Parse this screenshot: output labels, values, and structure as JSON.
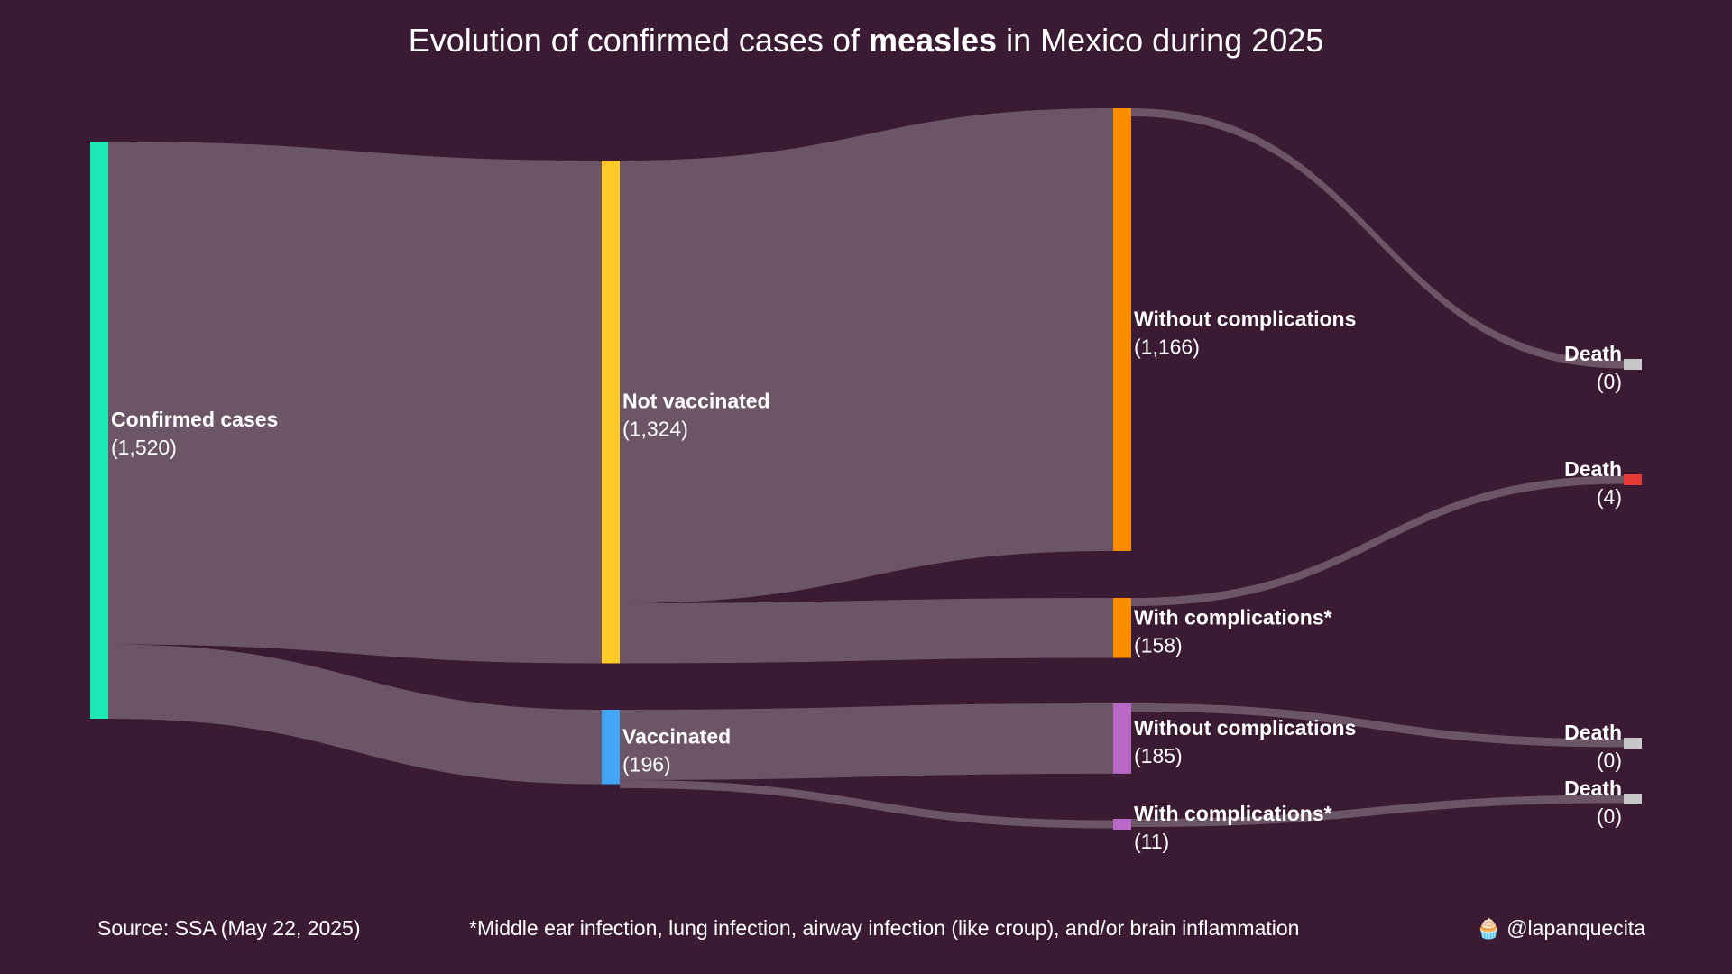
{
  "title": {
    "prefix": "Evolution of confirmed cases of ",
    "bold": "measles",
    "suffix": " in Mexico during 2025"
  },
  "source": "Source: SSA (May 22, 2025)",
  "footnote": "*Middle ear infection, lung infection, airway infection (like croup), and/or brain inflammation",
  "credit": "@lapanquecita",
  "colors": {
    "background": "#3a1b33",
    "link": "#6c5566",
    "confirmed": "#1de9b6",
    "not_vaccinated": "#ffca28",
    "vaccinated": "#42a5f5",
    "nv_branch": "#fb8c00",
    "v_branch": "#ba68c8",
    "death_zero": "#c8c8c8",
    "death_positive": "#e53935"
  },
  "chart_data": {
    "type": "sankey",
    "title": "Evolution of confirmed cases of measles in Mexico during 2025",
    "nodes": [
      {
        "id": "confirmed",
        "name": "Confirmed cases",
        "value_label": "(1,520)",
        "value": 1520,
        "color": "#1de9b6"
      },
      {
        "id": "not_vaccinated",
        "name": "Not vaccinated",
        "value_label": "(1,324)",
        "value": 1324,
        "color": "#ffca28"
      },
      {
        "id": "vaccinated",
        "name": "Vaccinated",
        "value_label": "(196)",
        "value": 196,
        "color": "#42a5f5"
      },
      {
        "id": "nv_without",
        "name": "Without complications",
        "value_label": "(1,166)",
        "value": 1166,
        "color": "#fb8c00"
      },
      {
        "id": "nv_with",
        "name": "With complications*",
        "value_label": "(158)",
        "value": 158,
        "color": "#fb8c00"
      },
      {
        "id": "v_without",
        "name": "Without complications",
        "value_label": "(185)",
        "value": 185,
        "color": "#ba68c8"
      },
      {
        "id": "v_with",
        "name": "With complications*",
        "value_label": "(11)",
        "value": 11,
        "color": "#ba68c8"
      },
      {
        "id": "death_nv_without",
        "name": "Death",
        "value_label": "(0)",
        "value": 0,
        "color": "#c8c8c8"
      },
      {
        "id": "death_nv_with",
        "name": "Death",
        "value_label": "(4)",
        "value": 4,
        "color": "#e53935"
      },
      {
        "id": "death_v_without",
        "name": "Death",
        "value_label": "(0)",
        "value": 0,
        "color": "#c8c8c8"
      },
      {
        "id": "death_v_with",
        "name": "Death",
        "value_label": "(0)",
        "value": 0,
        "color": "#c8c8c8"
      }
    ],
    "links": [
      {
        "source": "confirmed",
        "target": "not_vaccinated",
        "value": 1324
      },
      {
        "source": "confirmed",
        "target": "vaccinated",
        "value": 196
      },
      {
        "source": "not_vaccinated",
        "target": "nv_without",
        "value": 1166
      },
      {
        "source": "not_vaccinated",
        "target": "nv_with",
        "value": 158
      },
      {
        "source": "vaccinated",
        "target": "v_without",
        "value": 185
      },
      {
        "source": "vaccinated",
        "target": "v_with",
        "value": 11
      },
      {
        "source": "nv_without",
        "target": "death_nv_without",
        "value": 0
      },
      {
        "source": "nv_with",
        "target": "death_nv_with",
        "value": 4
      },
      {
        "source": "v_without",
        "target": "death_v_without",
        "value": 0
      },
      {
        "source": "v_with",
        "target": "death_v_with",
        "value": 0
      }
    ]
  }
}
